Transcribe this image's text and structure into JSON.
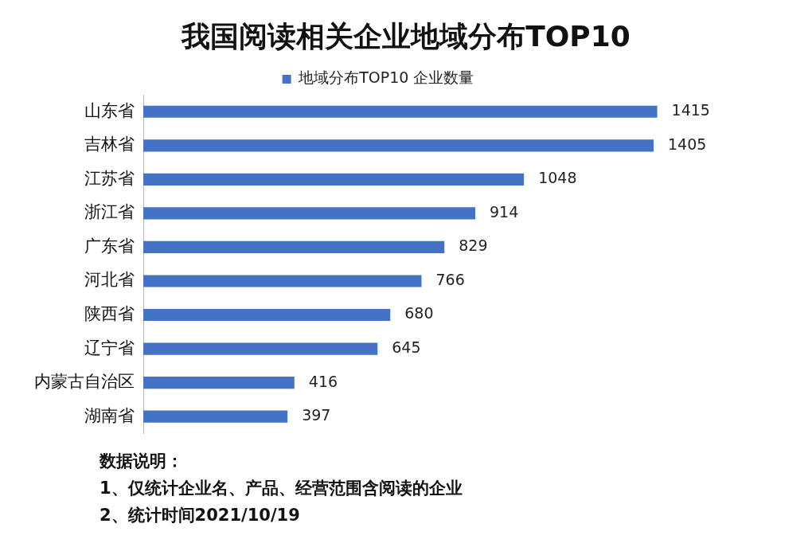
{
  "chart_data": {
    "type": "bar",
    "orientation": "horizontal",
    "title": "我国阅读相关企业地域分布TOP10",
    "categories": [
      "山东省",
      "吉林省",
      "江苏省",
      "浙江省",
      "广东省",
      "河北省",
      "陕西省",
      "辽宁省",
      "内蒙古自治区",
      "湖南省"
    ],
    "series": [
      {
        "name": "地域分布TOP10 企业数量",
        "color": "#4472c4",
        "values": [
          1415,
          1405,
          1048,
          914,
          829,
          766,
          680,
          645,
          416,
          397
        ]
      }
    ],
    "data_labels": true,
    "legend": "top",
    "annotations": [
      "数据说明：",
      "1、仅统计企业名、产品、经营范围含阅读的企业",
      "2、统计时间2021/10/19"
    ]
  }
}
